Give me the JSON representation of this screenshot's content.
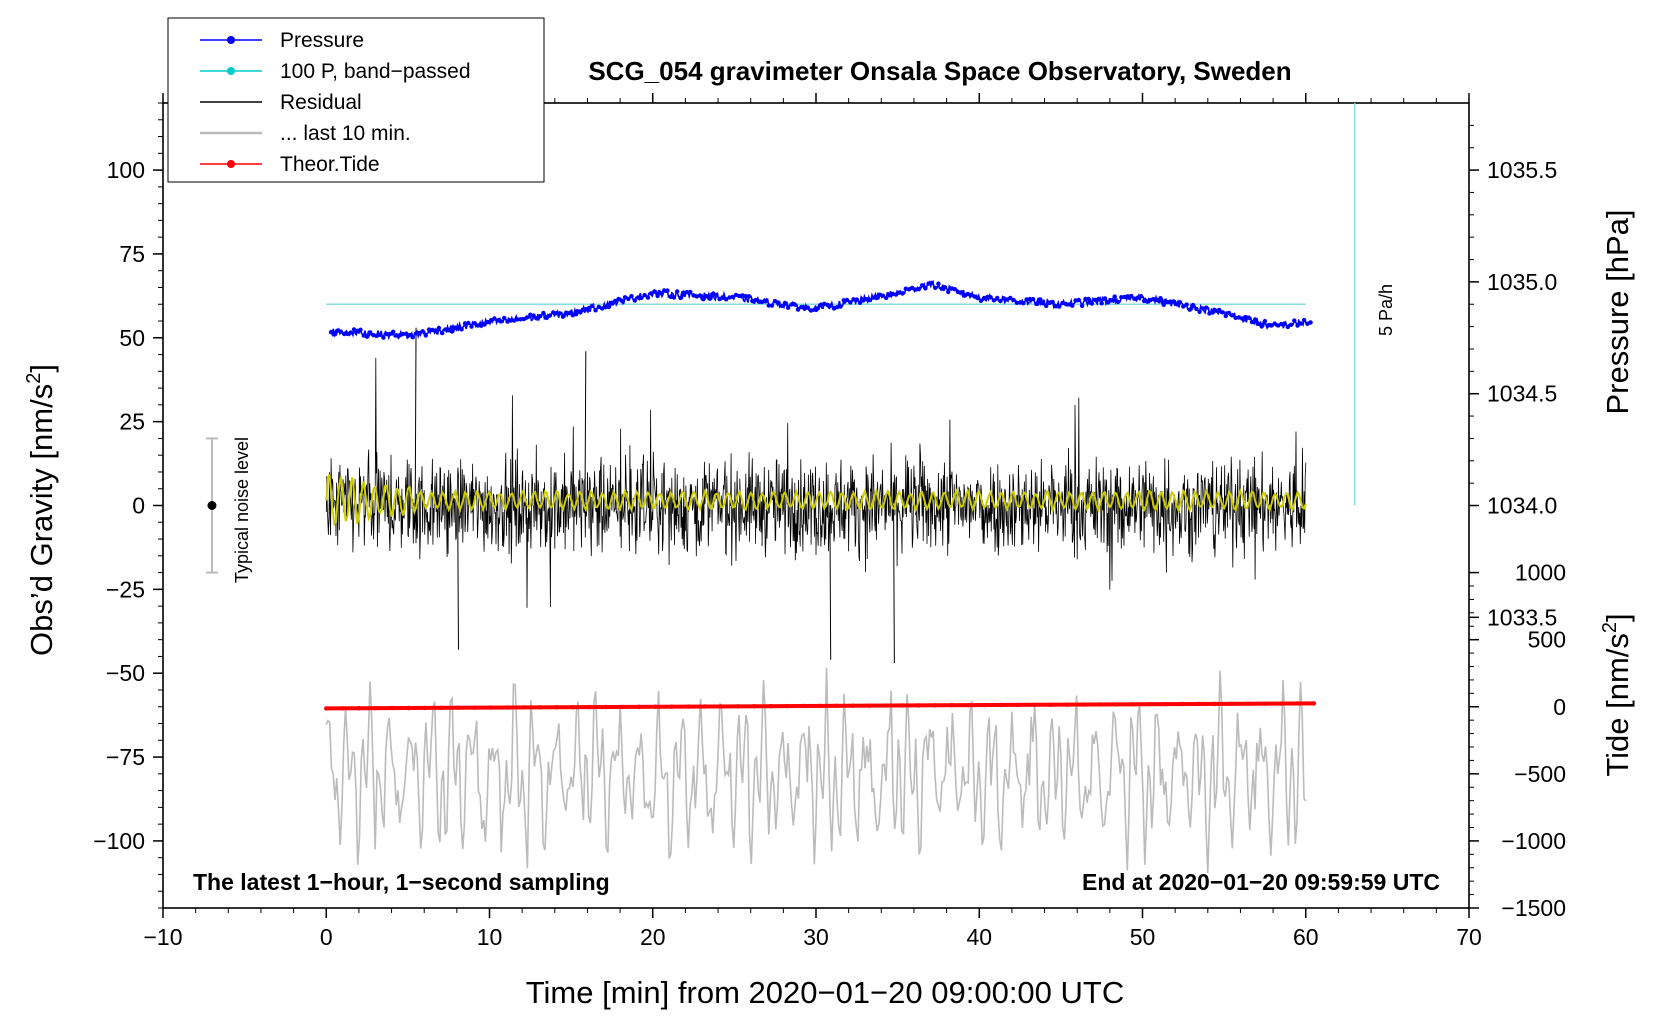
{
  "chart_data": {
    "type": "line",
    "title": "SCG_054 gravimeter Onsala Space Observatory, Sweden",
    "xlabel": "Time [min] from 2020−01−20 09:00:00 UTC",
    "ylabel_left": "Obs’d Gravity [nm/s²]",
    "ylabel_left_main": "Obs’d Gravity [nm/s",
    "ylabel_left_sup": "2",
    "ylabel_left_end": "]",
    "ylabel_right_top": "Pressure [hPa]",
    "ylabel_right_bottom": "Tide [nm/s²]",
    "ylabel_right_bottom_main": "Tide [nm/s",
    "ylabel_right_bottom_sup": "2",
    "ylabel_right_bottom_end": "]",
    "xlim": [
      -10,
      70
    ],
    "ylim_left": [
      -120,
      120
    ],
    "x_ticks": [
      -10,
      0,
      10,
      20,
      30,
      40,
      50,
      60,
      70
    ],
    "x_tick_labels": [
      "−10",
      "0",
      "10",
      "20",
      "30",
      "40",
      "50",
      "60",
      "70"
    ],
    "y_ticks_left": [
      100,
      75,
      50,
      25,
      0,
      -25,
      -50,
      -75,
      -100
    ],
    "y_tick_labels_left": [
      "100",
      "75",
      "50",
      "25",
      "0",
      "−25",
      "−50",
      "−75",
      "−100"
    ],
    "pressure_ticks": [
      1035.5,
      1035.0,
      1034.5,
      1034.0,
      1033.5
    ],
    "pressure_tick_labels": [
      "1035.5",
      "1035.0",
      "1034.5",
      "1034.0",
      "1033.5"
    ],
    "tide_ticks": [
      1000,
      500,
      0,
      -500,
      -1000,
      -1500
    ],
    "tide_tick_labels": [
      "1000",
      "500",
      "0",
      "−500",
      "−1000",
      "−1500"
    ],
    "note_left": "The latest 1−hour, 1−second sampling",
    "note_right": "End at 2020−01−20 09:59:59 UTC",
    "noise_label": "Typical noise level",
    "noise_level": {
      "x": -7,
      "center": 0,
      "range": [
        -20,
        20
      ]
    },
    "scale_bar_label": "5 Pa/h",
    "legend": [
      {
        "label": "Pressure",
        "color": "#0000ff",
        "marker": true
      },
      {
        "label": "100 P, band−passed",
        "color": "#00cccc",
        "marker": true
      },
      {
        "label": "Residual",
        "color": "#000000",
        "marker": false
      },
      {
        "label": "... last 10 min.",
        "color": "#bbbbbb",
        "marker": false
      },
      {
        "label": "Theor.Tide",
        "color": "#ff0000",
        "marker": true
      }
    ],
    "series": [
      {
        "name": "Pressure",
        "color": "#0000ff",
        "unit": "hPa",
        "x": [
          0,
          5,
          10,
          15,
          20,
          25,
          30,
          35,
          37,
          40,
          45,
          50,
          55,
          58,
          60
        ],
        "y": [
          1034.78,
          1034.76,
          1034.82,
          1034.86,
          1034.95,
          1034.93,
          1034.88,
          1034.95,
          1034.99,
          1034.93,
          1034.9,
          1034.93,
          1034.86,
          1034.8,
          1034.82
        ]
      },
      {
        "name": "100 P, band-passed",
        "color": "#88dddd",
        "unit": "nm/s²",
        "x": [
          0,
          60
        ],
        "y": [
          60,
          60
        ]
      },
      {
        "name": "Residual",
        "color": "#000000",
        "unit": "nm/s²",
        "x_range": [
          0,
          60
        ],
        "approx_envelope": [
          -35,
          35
        ],
        "peaks": [
          {
            "x": 5.5,
            "y": 53
          },
          {
            "x": 15.9,
            "y": 46
          },
          {
            "x": 8.1,
            "y": -43
          },
          {
            "x": 34.8,
            "y": -47
          },
          {
            "x": 30.9,
            "y": -46
          }
        ]
      },
      {
        "name": "Residual smoothed",
        "color": "#cccc00",
        "unit": "nm/s²",
        "x_range": [
          0,
          60
        ],
        "approx_envelope": [
          -5,
          5
        ]
      },
      {
        "name": "... last 10 min.",
        "color": "#bbbbbb",
        "unit": "nm/s²",
        "x_range": [
          0,
          60
        ],
        "approx_range": [
          -110,
          -55
        ]
      },
      {
        "name": "Theor.Tide",
        "color": "#ff0000",
        "unit": "nm/s²",
        "x": [
          0,
          60.5
        ],
        "y": [
          -60.5,
          -59
        ]
      }
    ]
  }
}
